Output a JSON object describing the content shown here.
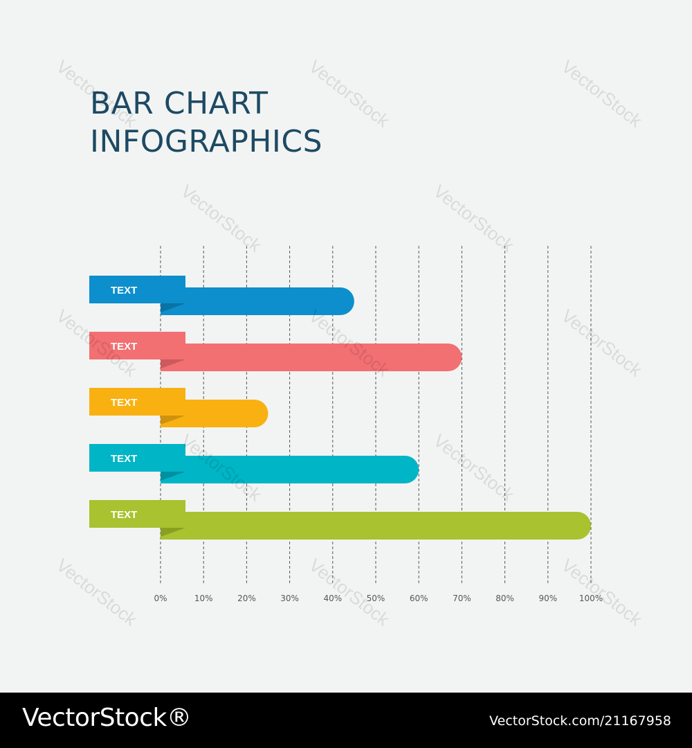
{
  "title": {
    "line1": "BAR CHART",
    "line2": "INFOGRAPHICS"
  },
  "chart_data": {
    "type": "bar",
    "orientation": "horizontal",
    "title": "BAR CHART INFOGRAPHICS",
    "categories": [
      "TEXT",
      "TEXT",
      "TEXT",
      "TEXT",
      "TEXT"
    ],
    "values": [
      45,
      70,
      25,
      60,
      100
    ],
    "colors": [
      "#0c8fcc",
      "#f26f72",
      "#f9b111",
      "#00b5c6",
      "#a8c230"
    ],
    "tab_shadow_colors": [
      "#0b6f9e",
      "#c5565a",
      "#c98c0e",
      "#00899a",
      "#84991f"
    ],
    "xlim": [
      0,
      100
    ],
    "xticks": [
      "0%",
      "10%",
      "20%",
      "30%",
      "40%",
      "50%",
      "60%",
      "70%",
      "80%",
      "90%",
      "100%"
    ],
    "grid": "vertical-dashed",
    "legend": "none"
  },
  "watermark": "VectorStock",
  "footer": {
    "logo": "VectorStock®",
    "url": "VectorStock.com/21167958"
  },
  "colors": {
    "background": "#f2f4f3",
    "title": "#1d4a63",
    "grid": "#555555"
  }
}
